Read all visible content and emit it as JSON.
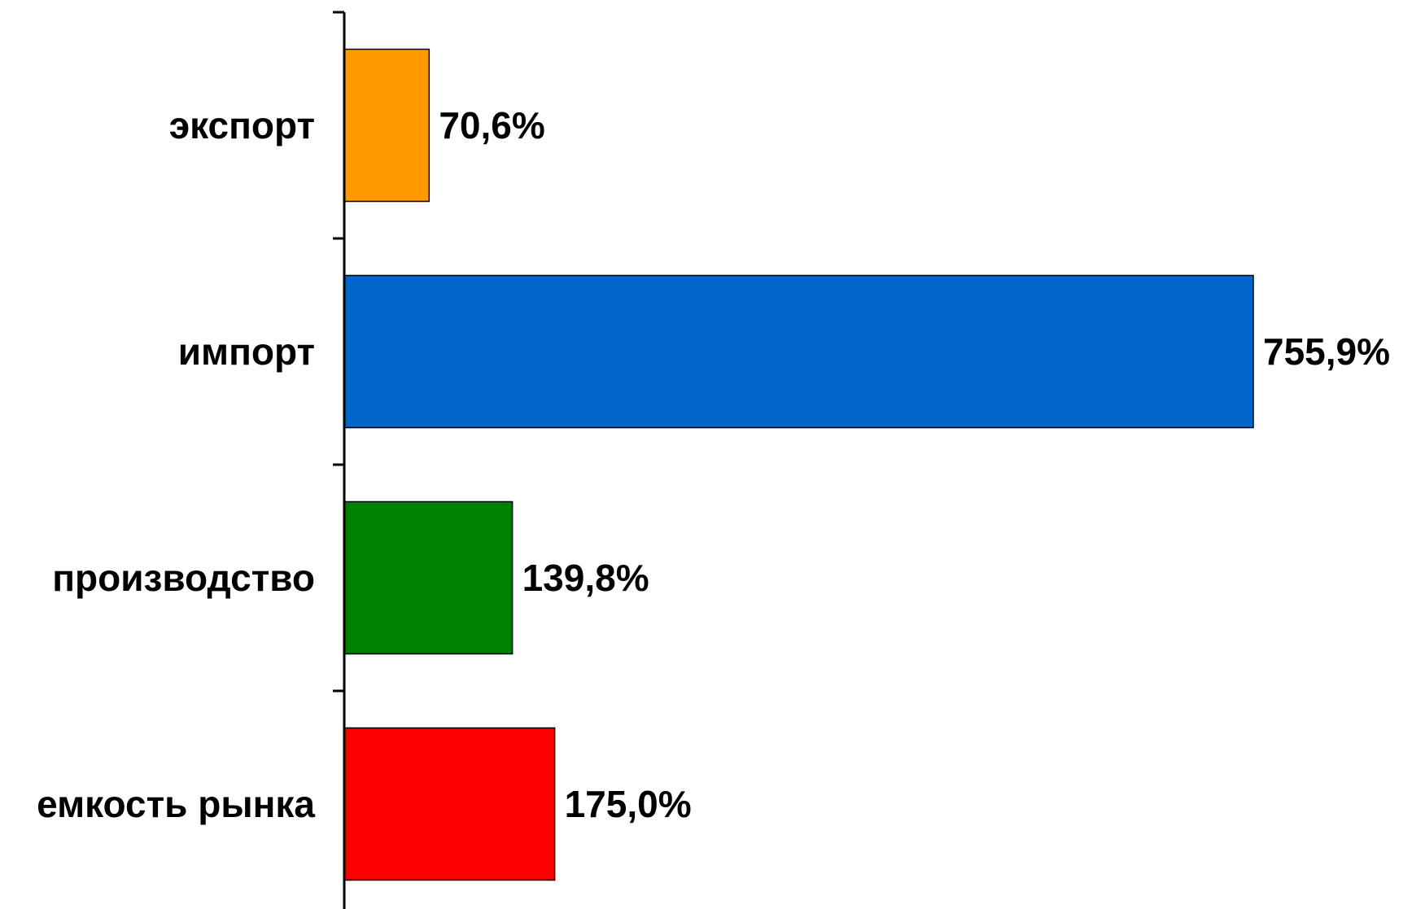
{
  "chart_data": {
    "type": "bar",
    "orientation": "horizontal",
    "categories": [
      "экспорт",
      "импорт",
      "производство",
      "емкость рынка"
    ],
    "values": [
      70.6,
      755.9,
      139.8,
      175.0
    ],
    "value_labels": [
      "70,6%",
      "755,9%",
      "139,8%",
      "175,0%"
    ],
    "colors": [
      "#FF9900",
      "#0066CC",
      "#008000",
      "#FF0000"
    ],
    "xlim": [
      0,
      800
    ],
    "grid": false,
    "legend": "none"
  }
}
